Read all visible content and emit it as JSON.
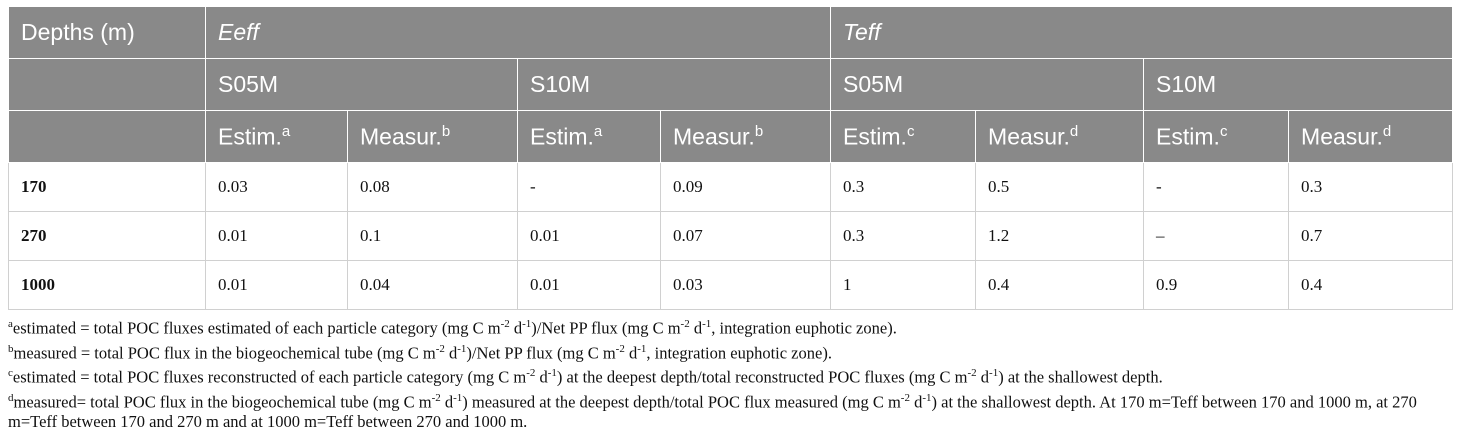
{
  "table": {
    "header": [
      [
        {
          "text": "Depths (m)"
        },
        {
          "text": "Eeff",
          "italic": true,
          "span": 4
        },
        {
          "text": "Teff",
          "italic": true,
          "span": 4
        }
      ],
      [
        {
          "text": "",
          "span": 1
        },
        {
          "text": "S05M",
          "span": 2
        },
        {
          "text": "S10M",
          "span": 2
        },
        {
          "text": "S05M",
          "span": 2
        },
        {
          "text": "S10M",
          "span": 2
        }
      ],
      [
        {
          "text": ""
        },
        {
          "text": "Estim.",
          "sup": "a"
        },
        {
          "text": "Measur.",
          "sup": "b"
        },
        {
          "text": "Estim.",
          "sup": "a"
        },
        {
          "text": "Measur.",
          "sup": "b"
        },
        {
          "text": "Estim.",
          "sup": "c"
        },
        {
          "text": "Measur.",
          "sup": "d"
        },
        {
          "text": "Estim.",
          "sup": "c"
        },
        {
          "text": "Measur.",
          "sup": "d"
        }
      ]
    ],
    "rows": [
      [
        "170",
        "0.03",
        "0.08",
        "-",
        "0.09",
        "0.3",
        "0.5",
        "-",
        "0.3"
      ],
      [
        "270",
        "0.01",
        "0.1",
        "0.01",
        "0.07",
        "0.3",
        "1.2",
        "–",
        "0.7"
      ],
      [
        "1000",
        "0.01",
        "0.04",
        "0.01",
        "0.03",
        "1",
        "0.4",
        "0.9",
        "0.4"
      ]
    ]
  },
  "footnotes": [
    [
      {
        "sup": "a"
      },
      {
        "t": "estimated = total POC fluxes estimated of each particle category (mg C m"
      },
      {
        "sup": "-2"
      },
      {
        "t": " d"
      },
      {
        "sup": "-1"
      },
      {
        "t": ")/Net PP flux (mg C m"
      },
      {
        "sup": "-2"
      },
      {
        "t": " d"
      },
      {
        "sup": "-1"
      },
      {
        "t": ", integration euphotic zone)."
      }
    ],
    [
      {
        "sup": "b"
      },
      {
        "t": "measured = total POC flux in the biogeochemical tube (mg C m"
      },
      {
        "sup": "-2"
      },
      {
        "t": " d"
      },
      {
        "sup": "-1"
      },
      {
        "t": ")/Net PP flux (mg C m"
      },
      {
        "sup": "-2"
      },
      {
        "t": " d"
      },
      {
        "sup": "-1"
      },
      {
        "t": ", integration euphotic zone)."
      }
    ],
    [
      {
        "sup": "c"
      },
      {
        "t": "estimated = total POC fluxes reconstructed of each particle category (mg C m"
      },
      {
        "sup": "-2"
      },
      {
        "t": " d"
      },
      {
        "sup": "-1"
      },
      {
        "t": ") at the deepest depth/total reconstructed POC fluxes (mg C m"
      },
      {
        "sup": "-2"
      },
      {
        "t": " d"
      },
      {
        "sup": "-1"
      },
      {
        "t": ") at the shallowest depth."
      }
    ],
    [
      {
        "sup": "d"
      },
      {
        "t": "measured= total POC flux in the biogeochemical tube (mg C m"
      },
      {
        "sup": "-2"
      },
      {
        "t": " d"
      },
      {
        "sup": "-1"
      },
      {
        "t": ") measured at the deepest depth/total POC flux measured (mg C m"
      },
      {
        "sup": "-2"
      },
      {
        "t": " d"
      },
      {
        "sup": "-1"
      },
      {
        "t": ") at the shallowest depth. At 170 m=Teff between 170 and 1000 m, at 270 m=Teff between 170 and 270 m and at 1000 m=Teff between 270 and 1000 m."
      }
    ]
  ]
}
